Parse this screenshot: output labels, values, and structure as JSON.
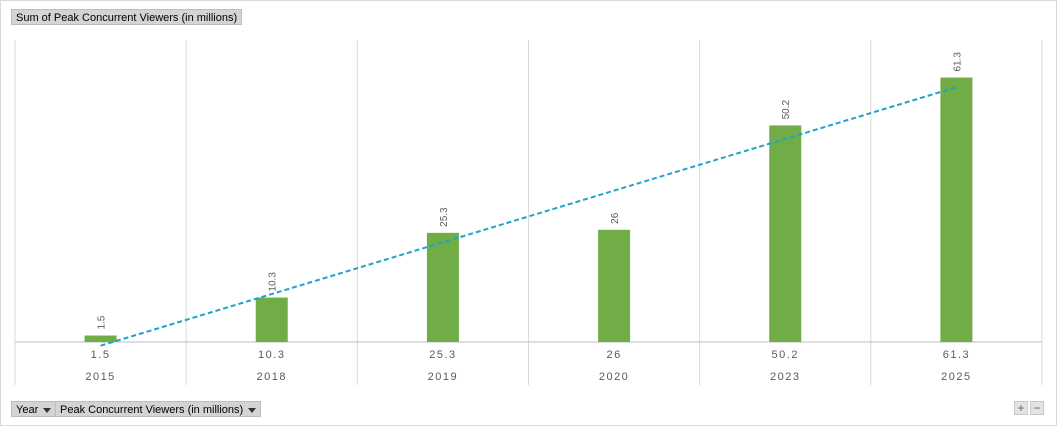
{
  "value_field_label": "Sum of Peak Concurrent Viewers (in millions)",
  "axis_field_buttons": {
    "year": "Year",
    "series": "Peak Concurrent Viewers (in millions)"
  },
  "zoom_controls": {
    "expand": "+",
    "collapse": "−"
  },
  "colors": {
    "bar": "#70ad47",
    "trendline": "#1fa3c6",
    "gridline": "#d9d9d9",
    "axis_text": "#595959"
  },
  "chart_data": {
    "type": "bar",
    "title": "",
    "xlabel": "",
    "ylabel": "",
    "categories": [
      "2015",
      "2018",
      "2019",
      "2020",
      "2023",
      "2025"
    ],
    "series": [
      {
        "name": "Peak Concurrent Viewers (in millions)",
        "values": [
          1.5,
          10.3,
          25.3,
          26,
          50.2,
          61.3
        ]
      }
    ],
    "category_value_labels": [
      "1.5",
      "10.3",
      "25.3",
      "26",
      "50.2",
      "61.3"
    ],
    "data_labels": [
      "1.5",
      "10.3",
      "25.3",
      "26",
      "50.2",
      "61.3"
    ],
    "trendline": {
      "type": "linear",
      "style": "dashed"
    },
    "ylim": [
      0,
      70
    ],
    "grid": true,
    "legend": "none"
  }
}
